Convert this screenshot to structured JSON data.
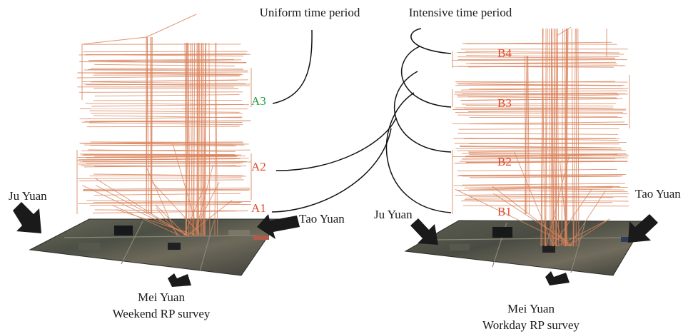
{
  "headers": {
    "uniform": "Uniform time period",
    "intensive": "Intensive time period"
  },
  "left_panel": {
    "markers": [
      "A3",
      "A2",
      "A1"
    ],
    "places": {
      "west": "Ju Yuan",
      "east": "Tao Yuan",
      "south": "Mei Yuan"
    },
    "caption": "Weekend RP survey"
  },
  "right_panel": {
    "markers": [
      "B4",
      "B3",
      "B2",
      "B1"
    ],
    "places": {
      "west": "Ju Yuan",
      "east": "Tao Yuan",
      "south": "Mei Yuan"
    },
    "caption": "Workday RP survey"
  },
  "colors": {
    "trajectory": "#d9825a",
    "marker_intensive": "#e0492c",
    "marker_uniform": "#1e9a3c",
    "arrow": "#1a1a1a",
    "connector": "#111111"
  }
}
